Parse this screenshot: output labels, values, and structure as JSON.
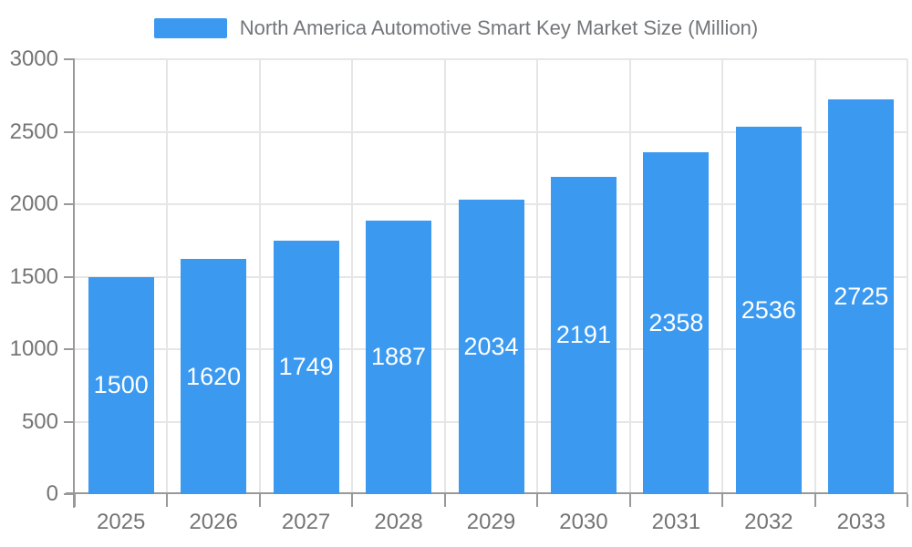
{
  "legend": {
    "label": "North America Automotive Smart Key Market Size (Million)"
  },
  "chart_data": {
    "type": "bar",
    "title": "North America Automotive Smart Key Market Size (Million)",
    "categories": [
      "2025",
      "2026",
      "2027",
      "2028",
      "2029",
      "2030",
      "2031",
      "2032",
      "2033"
    ],
    "values": [
      1500,
      1620,
      1749,
      1887,
      2034,
      2191,
      2358,
      2536,
      2725
    ],
    "series_name": "North America Automotive Smart Key Market Size (Million)",
    "xlabel": "",
    "ylabel": "",
    "ylim": [
      0,
      3000
    ],
    "yticks": [
      0,
      500,
      1000,
      1500,
      2000,
      2500,
      3000
    ],
    "grid": true,
    "bar_value_labels": "inside-center",
    "legend_position": "top-center",
    "colors": {
      "bar": "#3B99F0",
      "bar_label": "#FFFFFF",
      "axis_label": "#757575",
      "legend_text": "#73767A",
      "grid_line": "#E6E6E6",
      "axis_line": "#999999",
      "background": "#FFFFFF"
    }
  }
}
